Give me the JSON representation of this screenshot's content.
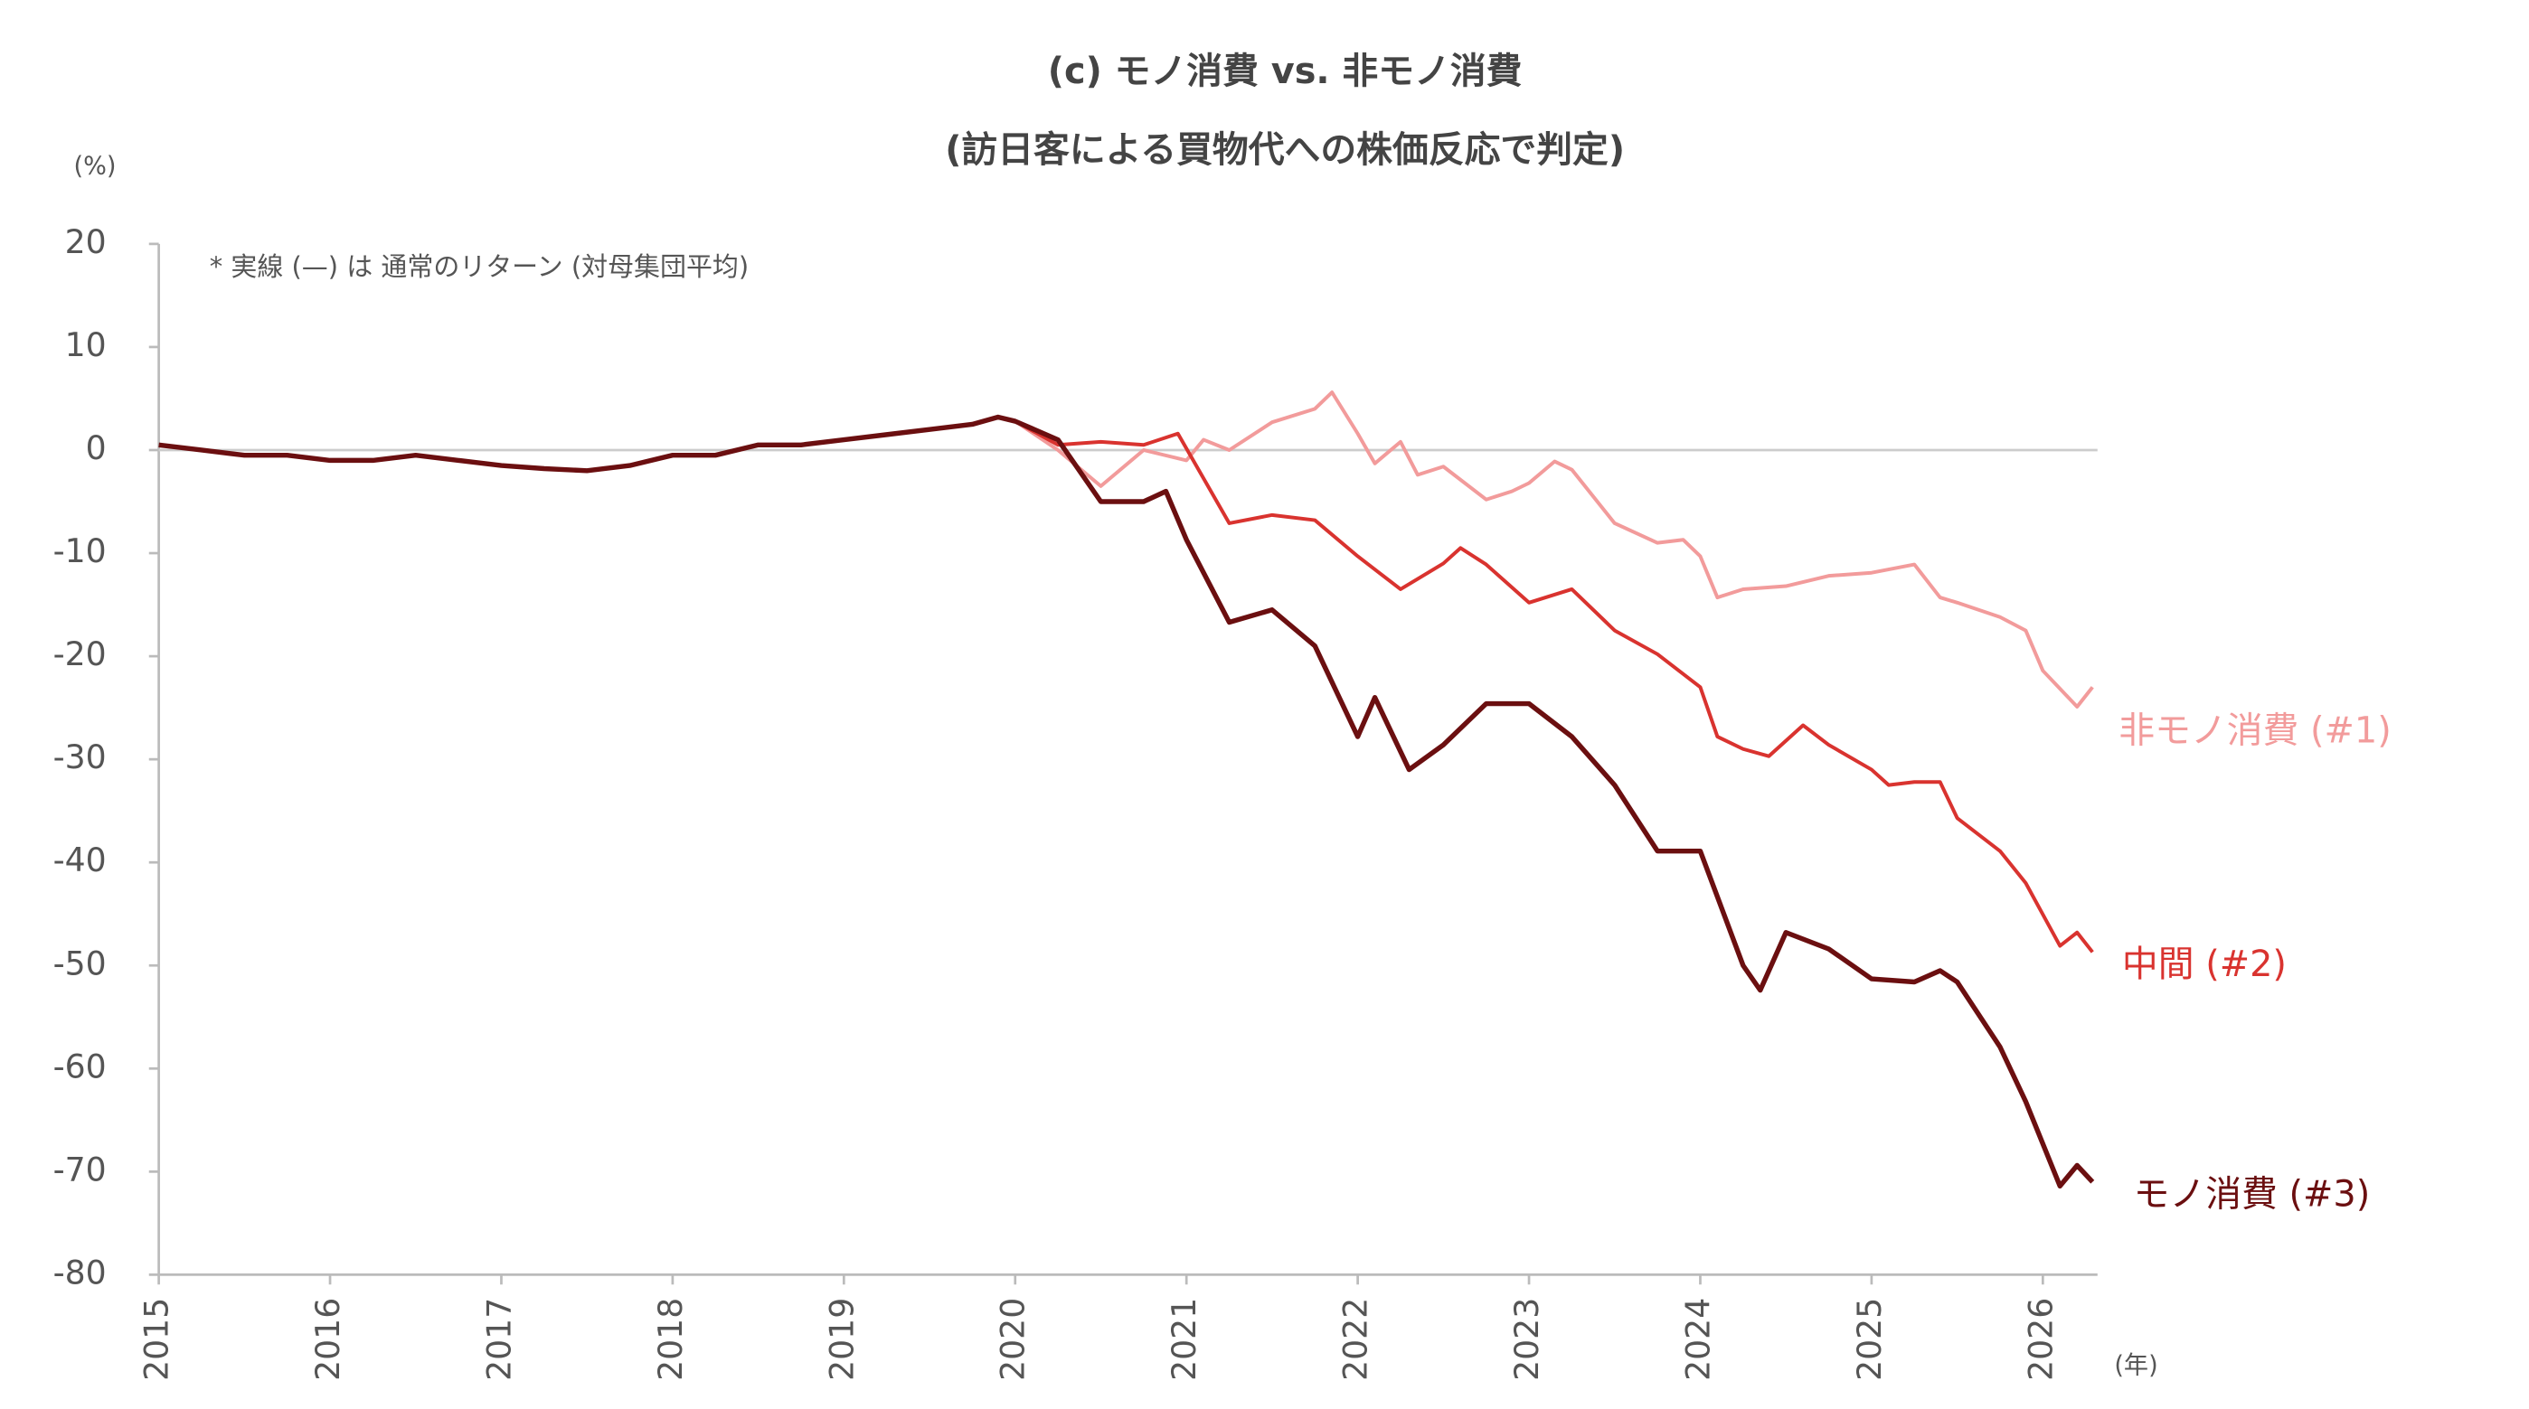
{
  "chart_data": {
    "type": "line",
    "title": "(c) モノ消費 vs. 非モノ消費",
    "subtitle": "(訪日客による買物代への株価反応で判定)",
    "y_label": "(%)",
    "x_label": "(年)",
    "annotation": "* 実線 (—) は 通常のリターン (対母集団平均)",
    "xlim": [
      2015,
      2026.3
    ],
    "xticks": [
      2015,
      2016,
      2017,
      2018,
      2019,
      2020,
      2021,
      2022,
      2023,
      2024,
      2025,
      2026
    ],
    "ylim": [
      -80,
      20
    ],
    "yticks": [
      -80,
      -70,
      -60,
      -50,
      -40,
      -30,
      -20,
      -10,
      0,
      10,
      20
    ],
    "zero_line": true,
    "series": [
      {
        "name": "非モノ消費 (#1)",
        "color": "#f29b9b",
        "x": [
          2020,
          2020.25,
          2020.5,
          2020.75,
          2021,
          2021.1,
          2021.25,
          2021.5,
          2021.75,
          2021.85,
          2022,
          2022.1,
          2022.25,
          2022.35,
          2022.5,
          2022.75,
          2022.9,
          2023,
          2023.15,
          2023.25,
          2023.5,
          2023.75,
          2023.9,
          2024,
          2024.1,
          2024.25,
          2024.5,
          2024.75,
          2025,
          2025.25,
          2025.4,
          2025.5,
          2025.75,
          2025.9,
          2026,
          2026.2,
          2026.29
        ],
        "values": [
          2.8,
          0,
          -3.5,
          0,
          -1,
          1,
          0,
          2.7,
          4,
          5.6,
          1.6,
          -1.3,
          0.8,
          -2.4,
          -1.6,
          -4.8,
          -4,
          -3.2,
          -1.1,
          -1.9,
          -7.1,
          -9,
          -8.7,
          -10.3,
          -14.3,
          -13.5,
          -13.2,
          -12.2,
          -11.9,
          -11.1,
          -14.3,
          -14.8,
          -16.2,
          -17.5,
          -21.4,
          -24.9,
          -23
        ]
      },
      {
        "name": "中間 (#2)",
        "color": "#d9332f",
        "x": [
          2020,
          2020.25,
          2020.5,
          2020.75,
          2020.95,
          2021.25,
          2021.5,
          2021.75,
          2022,
          2022.25,
          2022.5,
          2022.6,
          2022.75,
          2023,
          2023.25,
          2023.5,
          2023.75,
          2024,
          2024.1,
          2024.25,
          2024.4,
          2024.6,
          2024.75,
          2025,
          2025.1,
          2025.25,
          2025.4,
          2025.5,
          2025.75,
          2025.9,
          2026.1,
          2026.2,
          2026.29
        ],
        "values": [
          2.8,
          0.5,
          0.8,
          0.5,
          1.6,
          -7.1,
          -6.3,
          -6.8,
          -10.3,
          -13.5,
          -11,
          -9.5,
          -11.1,
          -14.8,
          -13.5,
          -17.5,
          -19.8,
          -23,
          -27.8,
          -29,
          -29.7,
          -26.7,
          -28.6,
          -31,
          -32.5,
          -32.2,
          -32.2,
          -35.7,
          -38.9,
          -42,
          -48.1,
          -46.8,
          -48.7
        ]
      },
      {
        "name": "モノ消費 (#3)",
        "color": "#6b0f10",
        "x": [
          2015,
          2015.25,
          2015.5,
          2015.75,
          2016,
          2016.25,
          2016.5,
          2016.75,
          2017,
          2017.25,
          2017.5,
          2017.75,
          2018,
          2018.25,
          2018.5,
          2018.75,
          2019,
          2019.25,
          2019.5,
          2019.75,
          2019.9,
          2020,
          2020.25,
          2020.5,
          2020.75,
          2020.88,
          2021,
          2021.25,
          2021.5,
          2021.75,
          2022,
          2022.1,
          2022.3,
          2022.5,
          2022.75,
          2023,
          2023.25,
          2023.5,
          2023.75,
          2024,
          2024.25,
          2024.35,
          2024.5,
          2024.75,
          2025,
          2025.25,
          2025.4,
          2025.5,
          2025.75,
          2025.9,
          2026.1,
          2026.2,
          2026.29
        ],
        "values": [
          0.5,
          0,
          -0.5,
          -0.5,
          -1,
          -1,
          -0.5,
          -1,
          -1.5,
          -1.8,
          -2,
          -1.5,
          -0.5,
          -0.5,
          0.5,
          0.5,
          1,
          1.5,
          2,
          2.5,
          3.2,
          2.8,
          1,
          -5,
          -5,
          -4,
          -8.7,
          -16.7,
          -15.5,
          -19,
          -27.8,
          -24,
          -31,
          -28.6,
          -24.6,
          -24.6,
          -27.8,
          -32.5,
          -38.9,
          -38.9,
          -50,
          -52.4,
          -46.8,
          -48.4,
          -51.3,
          -51.6,
          -50.5,
          -51.6,
          -57.9,
          -63.2,
          -71.4,
          -69.4,
          -71
        ]
      }
    ]
  }
}
